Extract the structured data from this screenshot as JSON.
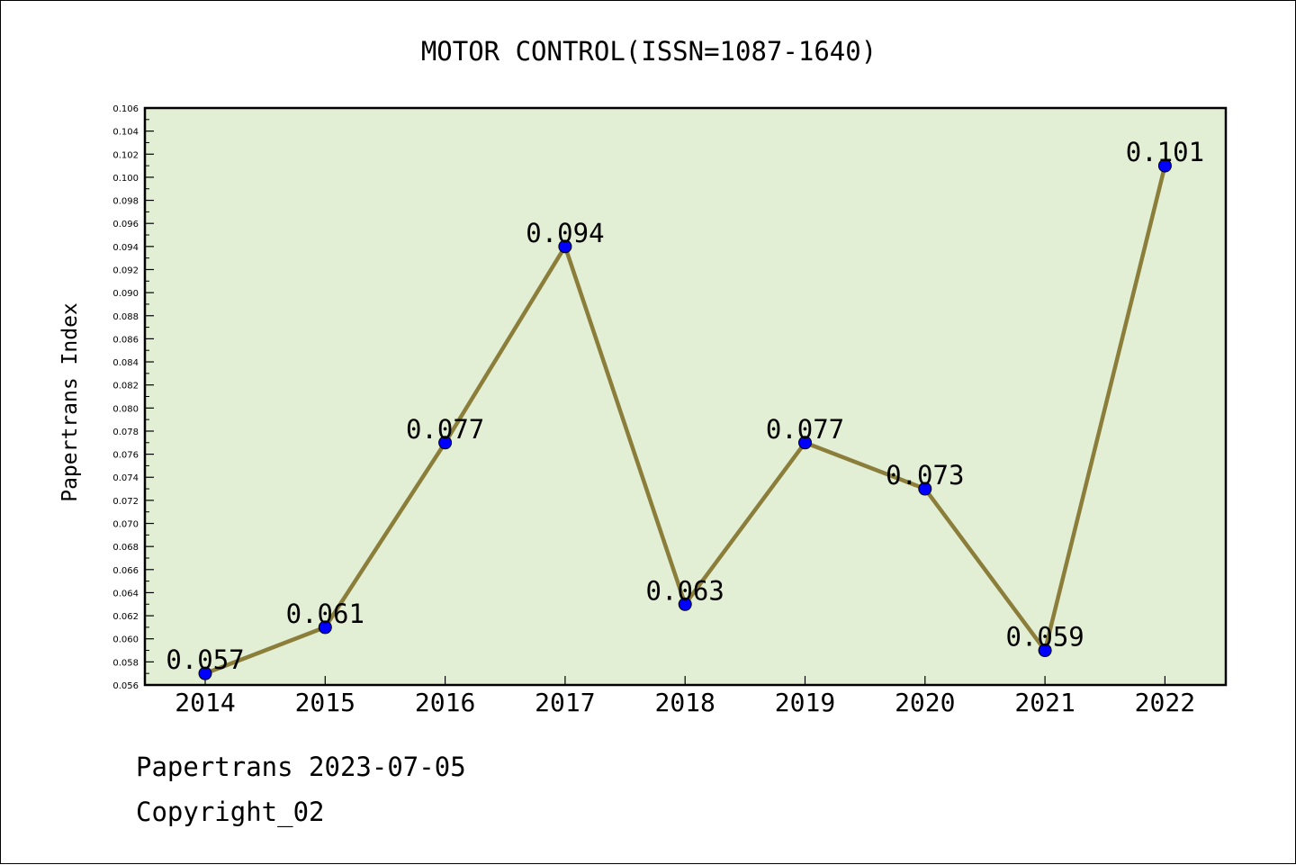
{
  "chart_data": {
    "type": "line",
    "title": "MOTOR CONTROL(ISSN=1087-1640)",
    "xlabel": "",
    "ylabel": "Papertrans Index",
    "categories": [
      "2014",
      "2015",
      "2016",
      "2017",
      "2018",
      "2019",
      "2020",
      "2021",
      "2022"
    ],
    "series": [
      {
        "values": [
          0.057,
          0.061,
          0.077,
          0.094,
          0.063,
          0.077,
          0.073,
          0.059,
          0.101
        ],
        "data_labels": [
          "0.057",
          "0.061",
          "0.077",
          "0.094",
          "0.063",
          "0.077",
          "0.073",
          "0.059",
          "0.101"
        ]
      }
    ],
    "ylim": [
      0.056,
      0.106
    ],
    "ytick_step": 0.002,
    "ytick_labels": [
      "0.056",
      "0.058",
      "0.060",
      "0.062",
      "0.064",
      "0.066",
      "0.068",
      "0.070",
      "0.072",
      "0.074",
      "0.076",
      "0.078",
      "0.080",
      "0.082",
      "0.084",
      "0.086",
      "0.088",
      "0.090",
      "0.092",
      "0.094",
      "0.096",
      "0.098",
      "0.100",
      "0.102",
      "0.104",
      "0.106"
    ],
    "grid": false,
    "colors": {
      "plot_background": "#e2efd5",
      "line": "#8b7d3a",
      "marker": "#0000ff",
      "axis": "#000000"
    }
  },
  "footer": {
    "source": "Papertrans 2023-07-05",
    "copyright": "Copyright_02"
  }
}
